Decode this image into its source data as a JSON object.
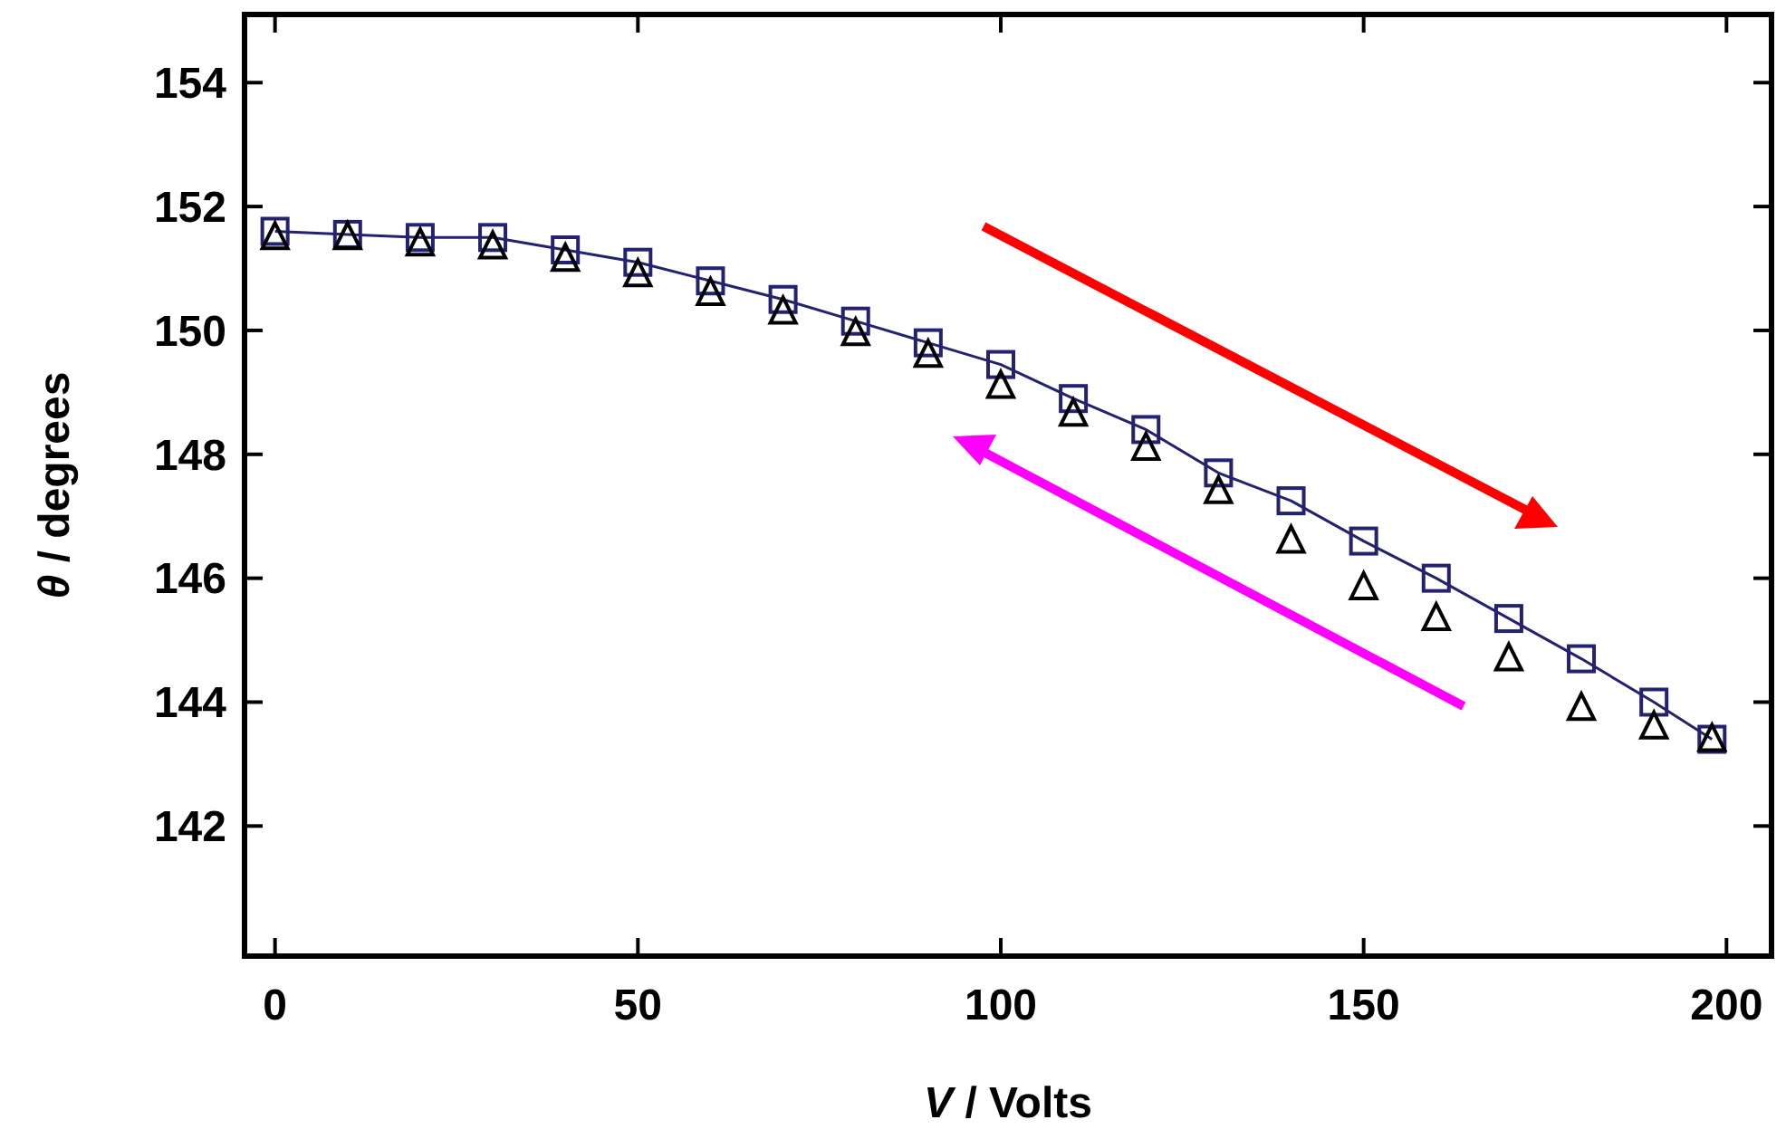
{
  "chart_data": {
    "type": "line",
    "xlabel": "V / Volts",
    "ylabel": "θ / degrees",
    "x": [
      0,
      10,
      20,
      30,
      40,
      50,
      60,
      70,
      80,
      90,
      100,
      110,
      120,
      130,
      140,
      150,
      160,
      170,
      180,
      190,
      198
    ],
    "series": [
      {
        "marker": "square",
        "color": "#22226e",
        "values": [
          151.6,
          151.55,
          151.5,
          151.5,
          151.3,
          151.1,
          150.8,
          150.5,
          150.15,
          149.8,
          149.45,
          148.9,
          148.4,
          147.7,
          147.25,
          146.6,
          146.0,
          145.35,
          144.7,
          144.0,
          143.4
        ]
      },
      {
        "type": "scatter",
        "marker": "triangle",
        "color": "#000000",
        "values": [
          151.5,
          151.5,
          151.4,
          151.35,
          151.15,
          150.9,
          150.6,
          150.3,
          149.95,
          149.6,
          149.1,
          148.65,
          148.1,
          147.4,
          146.6,
          145.85,
          145.35,
          144.7,
          143.9,
          143.6,
          143.4
        ]
      }
    ],
    "xlim": [
      -4.2,
      206.2
    ],
    "xticks": [
      0,
      50,
      100,
      150,
      200
    ],
    "ylim": [
      139.9,
      155.1
    ],
    "yticks": [
      142,
      144,
      146,
      148,
      150,
      152,
      154
    ],
    "grid": false
  }
}
